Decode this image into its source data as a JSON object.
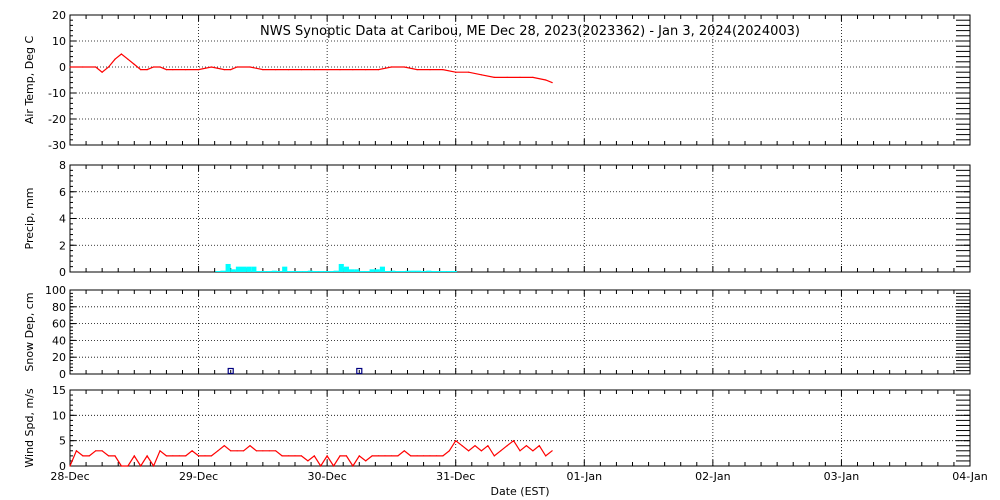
{
  "chart_data": {
    "title": "NWS Synoptic Data at Caribou, ME   Dec 28, 2023(2023362) - Jan  3, 2024(2024003)",
    "xlabel": "Date (EST)",
    "x_tick_labels": [
      "28-Dec",
      "29-Dec",
      "30-Dec",
      "31-Dec",
      "01-Jan",
      "02-Jan",
      "03-Jan",
      "04-Jan"
    ],
    "x_range_days": [
      0,
      7
    ],
    "panels": [
      {
        "type": "line",
        "ylabel": "Air Temp, Deg C",
        "ylim": [
          -30,
          20
        ],
        "yticks": [
          20,
          10,
          0,
          -10,
          -20,
          -30
        ],
        "color": "#ff0000",
        "grid": true,
        "x_days": [
          0.0,
          0.1,
          0.2,
          0.25,
          0.3,
          0.35,
          0.4,
          0.45,
          0.5,
          0.55,
          0.6,
          0.65,
          0.7,
          0.75,
          0.8,
          0.9,
          1.0,
          1.1,
          1.2,
          1.25,
          1.3,
          1.4,
          1.5,
          1.6,
          1.7,
          1.8,
          1.9,
          2.0,
          2.1,
          2.2,
          2.3,
          2.4,
          2.5,
          2.6,
          2.7,
          2.8,
          2.9,
          3.0,
          3.1,
          3.2,
          3.3,
          3.4,
          3.5,
          3.6,
          3.7,
          3.75
        ],
        "values": [
          0,
          0,
          0,
          -2,
          0,
          3,
          5,
          3,
          1,
          -1,
          -1,
          0,
          0,
          -1,
          -1,
          -1,
          -1,
          0,
          -1,
          -1,
          0,
          0,
          -1,
          -1,
          -1,
          -1,
          -1,
          -1,
          -1,
          -1,
          -1,
          -1,
          0,
          0,
          -1,
          -1,
          -1,
          -2,
          -2,
          -3,
          -4,
          -4,
          -4,
          -4,
          -5,
          -6
        ]
      },
      {
        "type": "bar",
        "ylabel": "Precip, mm",
        "ylim": [
          0,
          8
        ],
        "yticks": [
          8,
          6,
          4,
          2,
          0
        ],
        "color": "#00ffff",
        "grid": true,
        "bin_width_days": 0.04,
        "x_days": [
          1.15,
          1.19,
          1.23,
          1.27,
          1.31,
          1.35,
          1.39,
          1.43,
          1.47,
          1.51,
          1.55,
          1.59,
          1.63,
          1.67,
          1.71,
          1.75,
          1.79,
          1.83,
          1.87,
          1.91,
          1.95,
          1.99,
          2.03,
          2.07,
          2.11,
          2.15,
          2.19,
          2.23,
          2.27,
          2.31,
          2.35,
          2.39,
          2.43,
          2.47,
          2.51,
          2.55,
          2.59,
          2.63,
          2.67,
          2.71,
          2.75,
          2.79,
          2.83,
          2.87,
          2.91,
          2.95,
          2.99
        ],
        "values": [
          0,
          0.1,
          0.6,
          0.2,
          0.4,
          0.4,
          0.4,
          0.4,
          0,
          0,
          0,
          0.1,
          0,
          0.4,
          0,
          0,
          0,
          0,
          0.1,
          0,
          0,
          0,
          0,
          0.1,
          0.6,
          0.4,
          0.2,
          0.2,
          0,
          0,
          0.2,
          0.2,
          0.4,
          0,
          0.1,
          0,
          0,
          0.1,
          0.1,
          0.1,
          0,
          0.1,
          0,
          0,
          0,
          0,
          0
        ]
      },
      {
        "type": "scatter",
        "ylabel": "Snow Dep, cm",
        "ylim": [
          0,
          100
        ],
        "yticks": [
          100,
          80,
          60,
          40,
          20,
          0
        ],
        "color": "#000080",
        "marker": "square",
        "grid": true,
        "x_days": [
          1.25,
          2.25
        ],
        "values": [
          0,
          3
        ]
      },
      {
        "type": "line",
        "ylabel": "Wind Spd, m/s",
        "ylim": [
          0,
          15
        ],
        "yticks": [
          15,
          10,
          5,
          0
        ],
        "color": "#ff0000",
        "grid": true,
        "x_days": [
          0.0,
          0.05,
          0.1,
          0.15,
          0.2,
          0.25,
          0.3,
          0.35,
          0.4,
          0.45,
          0.5,
          0.55,
          0.6,
          0.65,
          0.7,
          0.75,
          0.8,
          0.85,
          0.9,
          0.95,
          1.0,
          1.05,
          1.1,
          1.15,
          1.2,
          1.25,
          1.3,
          1.35,
          1.4,
          1.45,
          1.5,
          1.55,
          1.6,
          1.65,
          1.7,
          1.75,
          1.8,
          1.85,
          1.9,
          1.95,
          2.0,
          2.05,
          2.1,
          2.15,
          2.2,
          2.25,
          2.3,
          2.35,
          2.4,
          2.45,
          2.5,
          2.55,
          2.6,
          2.65,
          2.7,
          2.75,
          2.8,
          2.85,
          2.9,
          2.95,
          3.0,
          3.05,
          3.1,
          3.15,
          3.2,
          3.25,
          3.3,
          3.35,
          3.4,
          3.45,
          3.5,
          3.55,
          3.6,
          3.65,
          3.7,
          3.75
        ],
        "values": [
          0,
          3,
          2,
          2,
          3,
          3,
          2,
          2,
          0,
          0,
          2,
          0,
          2,
          0,
          3,
          2,
          2,
          2,
          2,
          3,
          2,
          2,
          2,
          3,
          4,
          3,
          3,
          3,
          4,
          3,
          3,
          3,
          3,
          2,
          2,
          2,
          2,
          1,
          2,
          0,
          2,
          0,
          2,
          2,
          0,
          2,
          1,
          2,
          2,
          2,
          2,
          2,
          3,
          2,
          2,
          2,
          2,
          2,
          2,
          3,
          5,
          4,
          3,
          4,
          3,
          4,
          2,
          3,
          4,
          5,
          3,
          4,
          3,
          4,
          2,
          3
        ]
      }
    ]
  }
}
